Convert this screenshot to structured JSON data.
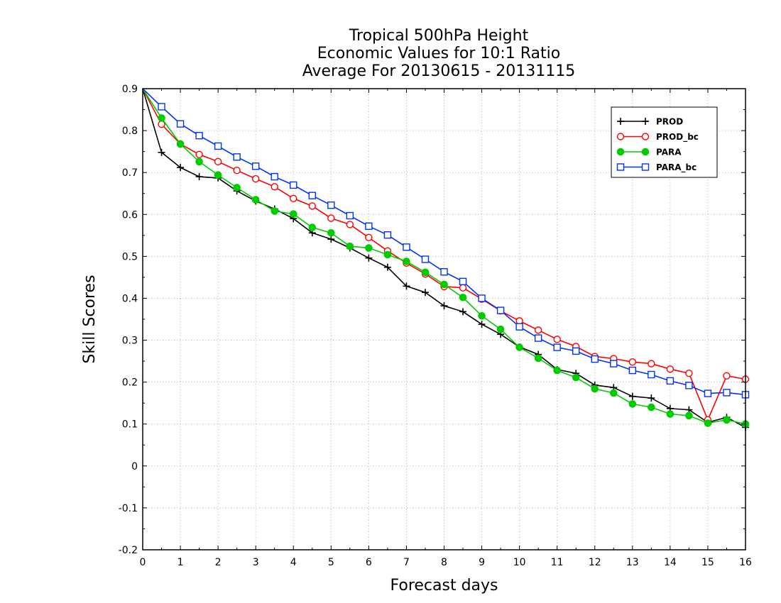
{
  "chart_data": {
    "type": "line",
    "title_lines": [
      "Tropical 500hPa Height",
      "Economic Values for 10:1 Ratio",
      "Average For 20130615 - 20131115"
    ],
    "xlabel": "Forecast days",
    "ylabel": "Skill Scores",
    "xlim": [
      0,
      16
    ],
    "ylim": [
      -0.2,
      0.9
    ],
    "x_ticks": [
      0,
      1,
      2,
      3,
      4,
      5,
      6,
      7,
      8,
      9,
      10,
      11,
      12,
      13,
      14,
      15,
      16
    ],
    "y_ticks": [
      -0.2,
      -0.1,
      0,
      0.1,
      0.2,
      0.3,
      0.4,
      0.5,
      0.6,
      0.7,
      0.8,
      0.9
    ],
    "y_tick_labels": [
      "-0.2",
      "-0.1",
      "0",
      "0.1",
      "0.2",
      "0.3",
      "0.4",
      "0.5",
      "0.6",
      "0.7",
      "0.8",
      "0.9"
    ],
    "grid": true,
    "legend_position": "top-right",
    "x": [
      0,
      0.5,
      1,
      1.5,
      2,
      2.5,
      3,
      3.5,
      4,
      4.5,
      5,
      5.5,
      6,
      6.5,
      7,
      7.5,
      8,
      8.5,
      9,
      9.5,
      10,
      10.5,
      11,
      11.5,
      12,
      12.5,
      13,
      13.5,
      14,
      14.5,
      15,
      15.5,
      16
    ],
    "series": [
      {
        "name": "PROD",
        "color": "#000000",
        "marker": "plus",
        "values": [
          0.9,
          0.748,
          0.712,
          0.69,
          0.687,
          0.656,
          0.632,
          0.613,
          0.59,
          0.556,
          0.541,
          0.52,
          0.496,
          0.474,
          0.429,
          0.414,
          0.382,
          0.368,
          0.338,
          0.314,
          0.284,
          0.266,
          0.23,
          0.221,
          0.193,
          0.187,
          0.166,
          0.162,
          0.137,
          0.134,
          0.104,
          0.116,
          0.092
        ]
      },
      {
        "name": "PROD_bc",
        "color": "#ff0000",
        "marker": "open-circle",
        "values": [
          0.9,
          0.815,
          0.768,
          0.743,
          0.726,
          0.705,
          0.685,
          0.666,
          0.638,
          0.62,
          0.591,
          0.576,
          0.545,
          0.513,
          0.484,
          0.458,
          0.428,
          0.425,
          0.398,
          0.37,
          0.346,
          0.324,
          0.302,
          0.285,
          0.261,
          0.256,
          0.248,
          0.244,
          0.231,
          0.221,
          0.11,
          0.215,
          0.207
        ]
      },
      {
        "name": "PARA",
        "color": "#00cc00",
        "marker": "filled-circle",
        "values": [
          0.9,
          0.83,
          0.768,
          0.726,
          0.694,
          0.664,
          0.635,
          0.608,
          0.601,
          0.569,
          0.556,
          0.524,
          0.52,
          0.504,
          0.488,
          0.462,
          0.433,
          0.402,
          0.358,
          0.326,
          0.283,
          0.257,
          0.228,
          0.211,
          0.184,
          0.174,
          0.148,
          0.14,
          0.124,
          0.12,
          0.102,
          0.11,
          0.1
        ]
      },
      {
        "name": "PARA_bc",
        "color": "#0033ff",
        "marker": "open-square",
        "values": [
          0.9,
          0.857,
          0.816,
          0.788,
          0.763,
          0.737,
          0.715,
          0.69,
          0.67,
          0.645,
          0.622,
          0.597,
          0.572,
          0.551,
          0.522,
          0.493,
          0.463,
          0.44,
          0.4,
          0.371,
          0.332,
          0.305,
          0.283,
          0.274,
          0.255,
          0.244,
          0.228,
          0.218,
          0.203,
          0.192,
          0.173,
          0.175,
          0.17
        ]
      }
    ]
  }
}
